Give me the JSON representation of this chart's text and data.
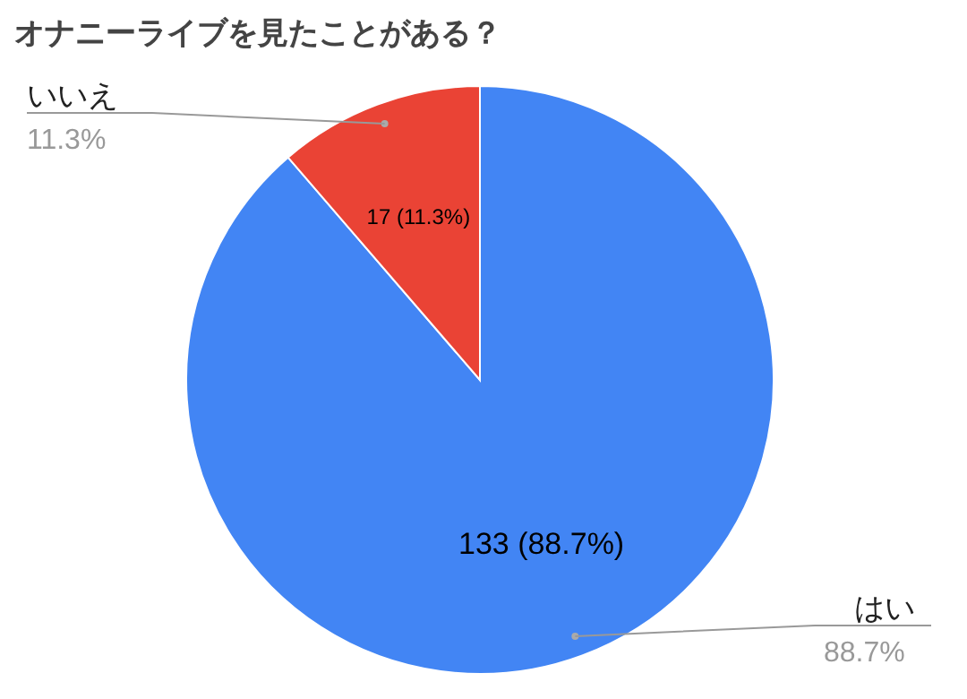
{
  "chart_data": {
    "type": "pie",
    "title": "オナニーライブを見たことがある？",
    "categories": [
      "はい",
      "いいえ"
    ],
    "values": [
      133,
      17
    ],
    "colors": [
      "#4285f4",
      "#ea4335"
    ],
    "value_labels": [
      "133 (88.7%)",
      "17 (11.3%)"
    ],
    "annotations": [
      "88.7%",
      "11.3%"
    ]
  }
}
